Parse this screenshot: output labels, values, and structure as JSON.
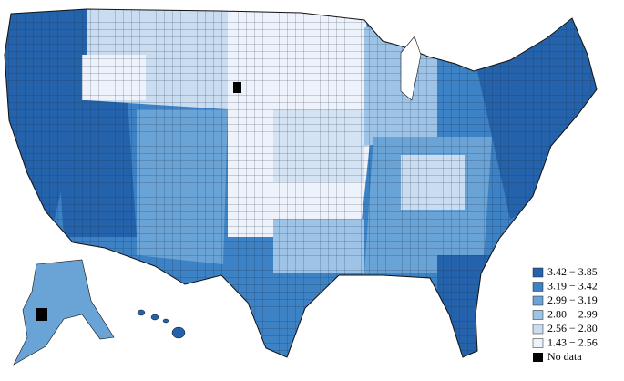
{
  "legend": {
    "items": [
      {
        "label": "3.42 − 3.85",
        "color": "#2463ab"
      },
      {
        "label": "3.19 − 3.42",
        "color": "#3d82c4"
      },
      {
        "label": "2.99 − 3.19",
        "color": "#6aa3d5"
      },
      {
        "label": "2.80 − 2.99",
        "color": "#9dc3e6"
      },
      {
        "label": "2.56 − 2.80",
        "color": "#c9dcf0"
      },
      {
        "label": "1.43 − 2.56",
        "color": "#eef3fb"
      }
    ],
    "no_data": {
      "label": "No data",
      "color": "#000000"
    }
  }
}
